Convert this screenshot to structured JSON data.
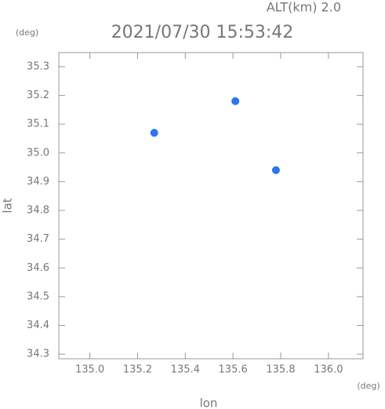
{
  "chart_data": {
    "type": "scatter",
    "title": "2021/07/30 15:53:42",
    "altitude_label": "ALT(km) 2.0",
    "y_unit": "(deg)",
    "x_unit": "(deg)",
    "x_label": "lon",
    "y_label": "lat",
    "x": [
      135.27,
      135.61,
      135.78
    ],
    "values": [
      35.07,
      35.18,
      34.94
    ],
    "color": "#2f74f0",
    "xlim": [
      134.87,
      136.145
    ],
    "ylim": [
      34.284,
      35.349
    ],
    "xticks": [
      {
        "value": 135,
        "label": "135.0"
      },
      135.2,
      135.4,
      135.6,
      135.8,
      {
        "value": 136,
        "label": "136.0"
      }
    ],
    "yticks": [
      34.3,
      34.4,
      34.5,
      34.6,
      34.7,
      34.8,
      34.9,
      {
        "value": 35,
        "label": "35.0"
      },
      35.1,
      35.2,
      35.3
    ]
  }
}
